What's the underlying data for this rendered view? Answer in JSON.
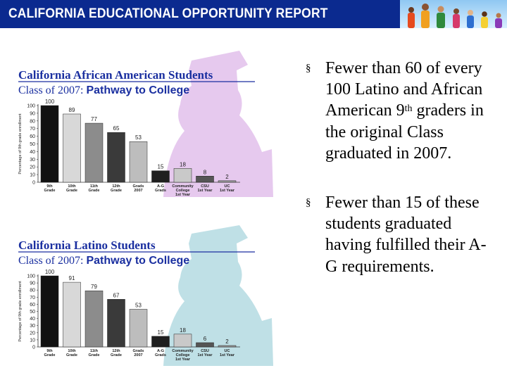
{
  "header": {
    "title": "CALIFORNIA EDUCATIONAL OPPORTUNITY REPORT"
  },
  "bullets": {
    "marker": "§",
    "item1": {
      "before_sup": "Fewer than 60 of every 100 Latino and African American 9",
      "sup": "th",
      "after_sup": " graders in the original Class graduated in 2007."
    },
    "item2": {
      "text": "Fewer than 15 of these students graduated having fulfilled their A-G requirements."
    }
  },
  "chart_data": [
    {
      "type": "bar",
      "title": "California African American Students",
      "subtitle_prefix": "Class of 2007: ",
      "subtitle_highlight": "Pathway to College",
      "ylabel": "Percentage of 9th grade enrollment",
      "ylim": [
        0,
        100
      ],
      "yticks": [
        "0",
        "10",
        "20",
        "30",
        "40",
        "50",
        "60",
        "70",
        "80",
        "90",
        "100"
      ],
      "categories": [
        {
          "line1": "9th",
          "line2": "Grade",
          "line3": ""
        },
        {
          "line1": "10th",
          "line2": "Grade",
          "line3": ""
        },
        {
          "line1": "11th",
          "line2": "Grade",
          "line3": ""
        },
        {
          "line1": "12th",
          "line2": "Grade",
          "line3": ""
        },
        {
          "line1": "Grads",
          "line2": "2007",
          "line3": ""
        },
        {
          "line1": "A-G",
          "line2": "Grads",
          "line3": ""
        },
        {
          "line1": "Community",
          "line2": "College",
          "line3": "1st Year"
        },
        {
          "line1": "CSU",
          "line2": "1st Year",
          "line3": ""
        },
        {
          "line1": "UC",
          "line2": "1st Year",
          "line3": ""
        }
      ],
      "values": [
        100,
        89,
        77,
        65,
        53,
        15,
        18,
        8,
        2
      ],
      "value_labels": [
        "100",
        "89",
        "77",
        "65",
        "53",
        "15",
        "18",
        "8",
        "2"
      ],
      "bar_colors": [
        "#111111",
        "#d8d8d8",
        "#8c8c8c",
        "#3a3a3a",
        "#bdbdbd",
        "#1f1f1f",
        "#c9c9c9",
        "#555555",
        "#9a9a9a"
      ],
      "accent_color": "#1a2fa0",
      "silhouette_color": "#e6c9ee"
    },
    {
      "type": "bar",
      "title": "California Latino Students",
      "subtitle_prefix": "Class of 2007: ",
      "subtitle_highlight": "Pathway to College",
      "ylabel": "Percentage of 9th grade enrollment",
      "ylim": [
        0,
        100
      ],
      "yticks": [
        "0",
        "10",
        "20",
        "30",
        "40",
        "50",
        "60",
        "70",
        "80",
        "90",
        "100"
      ],
      "categories": [
        {
          "line1": "9th",
          "line2": "Grade",
          "line3": ""
        },
        {
          "line1": "10th",
          "line2": "Grade",
          "line3": ""
        },
        {
          "line1": "11th",
          "line2": "Grade",
          "line3": ""
        },
        {
          "line1": "12th",
          "line2": "Grade",
          "line3": ""
        },
        {
          "line1": "Grads",
          "line2": "2007",
          "line3": ""
        },
        {
          "line1": "A-G",
          "line2": "Grads",
          "line3": ""
        },
        {
          "line1": "Community",
          "line2": "College",
          "line3": "1st Year"
        },
        {
          "line1": "CSU",
          "line2": "1st Year",
          "line3": ""
        },
        {
          "line1": "UC",
          "line2": "1st Year",
          "line3": ""
        }
      ],
      "values": [
        100,
        91,
        79,
        67,
        53,
        15,
        18,
        6,
        2
      ],
      "value_labels": [
        "100",
        "91",
        "79",
        "67",
        "53",
        "15",
        "18",
        "6",
        "2"
      ],
      "bar_colors": [
        "#111111",
        "#d8d8d8",
        "#8c8c8c",
        "#3a3a3a",
        "#bdbdbd",
        "#1f1f1f",
        "#c9c9c9",
        "#555555",
        "#9a9a9a"
      ],
      "accent_color": "#1a2fa0",
      "silhouette_color": "#bfe0e6"
    }
  ]
}
